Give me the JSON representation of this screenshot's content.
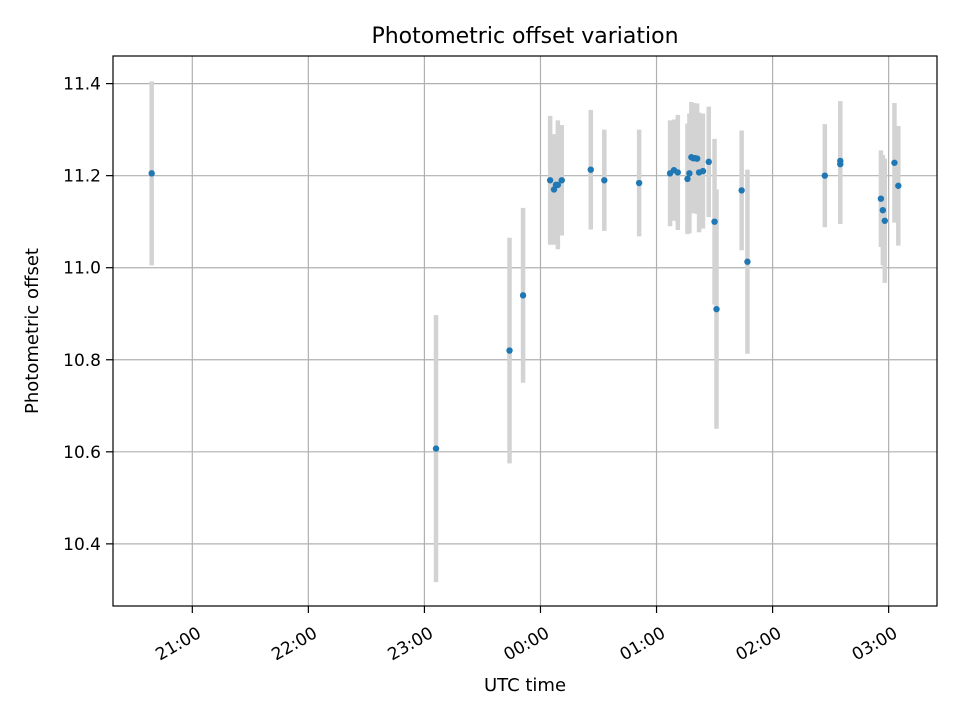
{
  "chart_data": {
    "type": "scatter",
    "title": "Photometric offset variation",
    "xlabel": "UTC time",
    "ylabel": "Photometric offset",
    "grid": true,
    "x_ticks": [
      "21:00",
      "22:00",
      "23:00",
      "00:00",
      "01:00",
      "02:00",
      "03:00"
    ],
    "y_ticks": [
      "10.4",
      "10.6",
      "10.8",
      "11.0",
      "11.2",
      "11.4"
    ],
    "xlim": [
      "20:19",
      "03:25"
    ],
    "ylim": [
      10.265,
      11.46
    ],
    "colors": {
      "point": "#1f77b4",
      "errorbar": "#d3d3d3",
      "grid": "#b0b0b0"
    },
    "points": [
      {
        "x": "20:39",
        "y": 11.205,
        "err": 0.2
      },
      {
        "x": "23:06",
        "y": 10.607,
        "err": 0.29
      },
      {
        "x": "23:44",
        "y": 10.82,
        "err": 0.245
      },
      {
        "x": "23:51",
        "y": 10.94,
        "err": 0.19
      },
      {
        "x": "00:05",
        "y": 11.19,
        "err": 0.14
      },
      {
        "x": "00:07",
        "y": 11.17,
        "err": 0.12
      },
      {
        "x": "00:08",
        "y": 11.18,
        "err": 0.11
      },
      {
        "x": "00:09",
        "y": 11.18,
        "err": 0.14
      },
      {
        "x": "00:11",
        "y": 11.19,
        "err": 0.12
      },
      {
        "x": "00:26",
        "y": 11.213,
        "err": 0.13
      },
      {
        "x": "00:33",
        "y": 11.19,
        "err": 0.11
      },
      {
        "x": "00:51",
        "y": 11.184,
        "err": 0.116
      },
      {
        "x": "01:07",
        "y": 11.205,
        "err": 0.115
      },
      {
        "x": "01:09",
        "y": 11.212,
        "err": 0.11
      },
      {
        "x": "01:11",
        "y": 11.207,
        "err": 0.125
      },
      {
        "x": "01:16",
        "y": 11.193,
        "err": 0.12
      },
      {
        "x": "01:17",
        "y": 11.205,
        "err": 0.13
      },
      {
        "x": "01:18",
        "y": 11.24,
        "err": 0.12
      },
      {
        "x": "01:19",
        "y": 11.238,
        "err": 0.12
      },
      {
        "x": "01:20",
        "y": 11.238,
        "err": 0.11
      },
      {
        "x": "01:21",
        "y": 11.237,
        "err": 0.12
      },
      {
        "x": "01:22",
        "y": 11.207,
        "err": 0.13
      },
      {
        "x": "01:24",
        "y": 11.21,
        "err": 0.125
      },
      {
        "x": "01:27",
        "y": 11.23,
        "err": 0.12
      },
      {
        "x": "01:30",
        "y": 11.1,
        "err": 0.18
      },
      {
        "x": "01:31",
        "y": 10.91,
        "err": 0.26
      },
      {
        "x": "01:44",
        "y": 11.168,
        "err": 0.13
      },
      {
        "x": "01:47",
        "y": 11.013,
        "err": 0.2
      },
      {
        "x": "02:27",
        "y": 11.2,
        "err": 0.112
      },
      {
        "x": "02:35",
        "y": 11.232,
        "err": 0.13
      },
      {
        "x": "02:35",
        "y": 11.225,
        "err": 0.13
      },
      {
        "x": "02:56",
        "y": 11.15,
        "err": 0.105
      },
      {
        "x": "02:57",
        "y": 11.125,
        "err": 0.12
      },
      {
        "x": "02:58",
        "y": 11.102,
        "err": 0.135
      },
      {
        "x": "03:03",
        "y": 11.228,
        "err": 0.13
      },
      {
        "x": "03:05",
        "y": 11.178,
        "err": 0.13
      }
    ]
  }
}
